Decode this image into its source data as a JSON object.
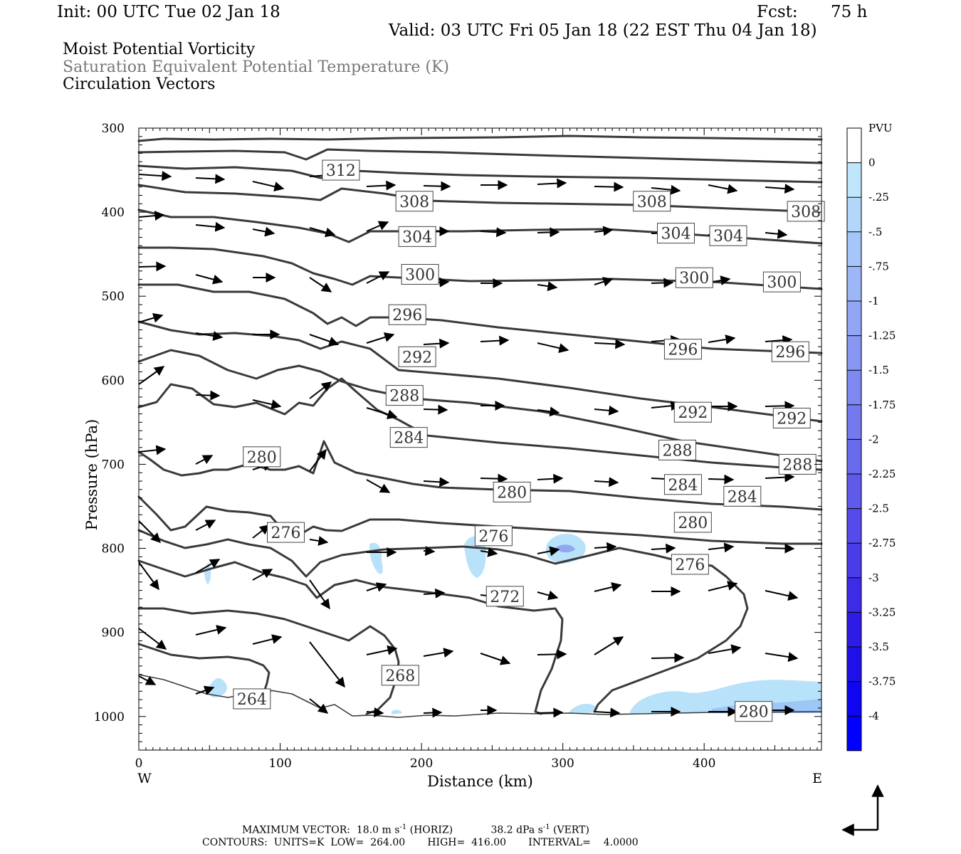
{
  "header": {
    "init": "Init: 00 UTC Tue 02 Jan 18",
    "fcst_label": "Fcst:",
    "fcst_value": "75 h",
    "valid": "Valid: 03 UTC Fri 05 Jan 18 (22 EST Thu 04 Jan 18)"
  },
  "titles": [
    "Moist Potential Vorticity",
    "Saturation Equivalent Potential Temperature (K)",
    "Circulation Vectors"
  ],
  "colors": {
    "contour": "#3a3a3a",
    "title_gray": "#777777",
    "pv_shades": [
      "#ffffff",
      "#ffffff",
      "#bfe6fb",
      "#b3d7fa",
      "#a6c5f8",
      "#9cb6f6",
      "#92a6f4",
      "#8897f2",
      "#7e88f0",
      "#7479ee",
      "#6a6aec",
      "#5f5aea",
      "#554bea",
      "#4a3ce8",
      "#3d2be8",
      "#2f1be6",
      "#2010e8",
      "#1005f0",
      "#0000ff"
    ]
  },
  "footer": {
    "max_vector_label": "MAXIMUM VECTOR:",
    "max_horiz_value": "18.0 m s",
    "max_horiz_exp": "-1",
    "max_horiz_suffix": " (HORIZ)",
    "max_vert_value": "38.2 dPa s",
    "max_vert_exp": "-1",
    "max_vert_suffix": " (VERT)",
    "contours_line": "CONTOURS:  UNITS=K  LOW=  264.00       HIGH=  416.00       INTERVAL=    4.0000"
  },
  "chart_data": {
    "type": "cross-section",
    "xlabel": "Distance (km)",
    "ylabel": "Pressure (hPa)",
    "xlim": [
      0,
      483
    ],
    "ylim": [
      1040,
      300
    ],
    "x_ticks": [
      0,
      100,
      200,
      300,
      400
    ],
    "y_ticks": [
      300,
      400,
      500,
      600,
      700,
      800,
      900,
      1000
    ],
    "x_end_labels": {
      "left": "W",
      "right": "E"
    },
    "grid": false,
    "contour_variable": "Saturation Equivalent Potential Temperature (K)",
    "contour_levels": [
      264,
      268,
      272,
      276,
      280,
      284,
      288,
      292,
      296,
      300,
      304,
      308,
      312
    ],
    "contour_labels": [
      {
        "value": 312,
        "x": 143,
        "p": 350
      },
      {
        "value": 308,
        "x": 195,
        "p": 387
      },
      {
        "value": 308,
        "x": 363,
        "p": 387
      },
      {
        "value": 308,
        "x": 472,
        "p": 399
      },
      {
        "value": 304,
        "x": 197,
        "p": 429
      },
      {
        "value": 304,
        "x": 380,
        "p": 425
      },
      {
        "value": 304,
        "x": 417,
        "p": 428
      },
      {
        "value": 300,
        "x": 199,
        "p": 474
      },
      {
        "value": 300,
        "x": 393,
        "p": 478
      },
      {
        "value": 300,
        "x": 455,
        "p": 483
      },
      {
        "value": 296,
        "x": 190,
        "p": 522
      },
      {
        "value": 296,
        "x": 385,
        "p": 563
      },
      {
        "value": 296,
        "x": 461,
        "p": 566
      },
      {
        "value": 292,
        "x": 197,
        "p": 572
      },
      {
        "value": 292,
        "x": 392,
        "p": 638
      },
      {
        "value": 292,
        "x": 462,
        "p": 645
      },
      {
        "value": 288,
        "x": 188,
        "p": 618
      },
      {
        "value": 288,
        "x": 381,
        "p": 683
      },
      {
        "value": 288,
        "x": 466,
        "p": 700
      },
      {
        "value": 284,
        "x": 191,
        "p": 668
      },
      {
        "value": 284,
        "x": 385,
        "p": 724
      },
      {
        "value": 284,
        "x": 427,
        "p": 738
      },
      {
        "value": 280,
        "x": 87,
        "p": 691
      },
      {
        "value": 280,
        "x": 264,
        "p": 733
      },
      {
        "value": 280,
        "x": 392,
        "p": 769
      },
      {
        "value": 280,
        "x": 435,
        "p": 994
      },
      {
        "value": 276,
        "x": 104,
        "p": 781
      },
      {
        "value": 276,
        "x": 251,
        "p": 785
      },
      {
        "value": 276,
        "x": 390,
        "p": 819
      },
      {
        "value": 272,
        "x": 259,
        "p": 857
      },
      {
        "value": 268,
        "x": 185,
        "p": 951
      },
      {
        "value": 264,
        "x": 80,
        "p": 979
      }
    ],
    "shading_variable": "Moist Potential Vorticity",
    "shading_units": "PVU",
    "colorbar_ticks": [
      "PVU",
      "0",
      "-.25",
      "-.5",
      "-.75",
      "-1",
      "-1.25",
      "-1.5",
      "-1.75",
      "-2",
      "-2.25",
      "-2.5",
      "-2.75",
      "-3",
      "-3.25",
      "-3.5",
      "-3.75",
      "-4"
    ],
    "vectors": "Circulation Vectors",
    "max_vector_horiz": 18.0,
    "max_vector_vert": 38.2
  }
}
